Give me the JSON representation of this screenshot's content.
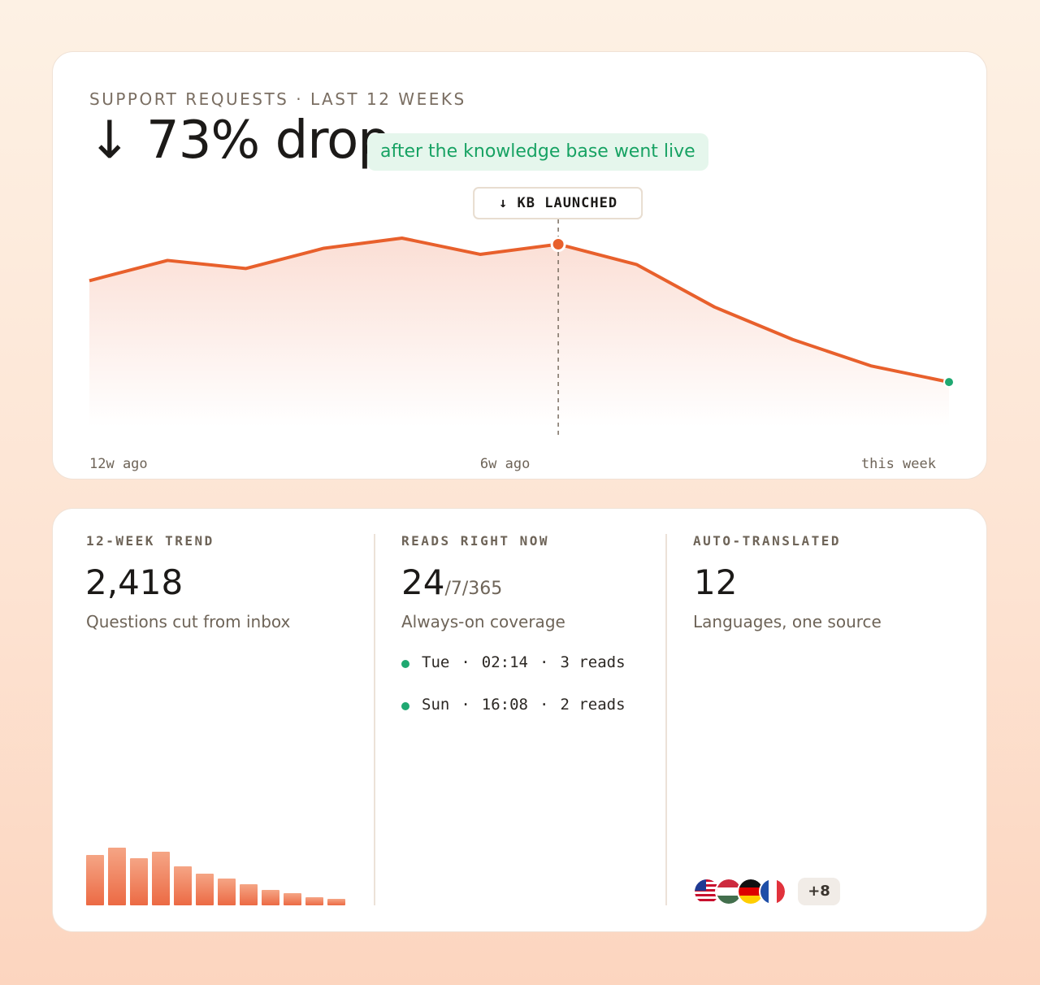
{
  "hero": {
    "eyebrow": "SUPPORT REQUESTS · LAST 12 WEEKS",
    "headline": "↓ 73% drop",
    "badge": "after the knowledge base went live"
  },
  "chart_data": [
    {
      "type": "line",
      "categories": [
        "12w ago",
        null,
        null,
        null,
        null,
        "6w ago",
        null,
        null,
        null,
        null,
        null,
        "this week"
      ],
      "values": [
        72,
        82,
        78,
        88,
        93,
        85,
        90,
        80,
        59,
        43,
        30,
        22
      ],
      "color": "#e8602c",
      "end_color": "#1fa871",
      "annotations": [
        {
          "label": "↓ KB LAUNCHED",
          "index": 6
        }
      ]
    },
    {
      "type": "bar",
      "values": [
        62,
        71,
        58,
        66,
        48,
        39,
        33,
        26,
        19,
        15,
        10,
        8
      ],
      "color": "#ee7a52"
    }
  ],
  "stats": [
    {
      "label": "12-WEEK TREND",
      "value": "2,418",
      "caption": "Questions cut from inbox"
    },
    {
      "label": "READS RIGHT NOW",
      "value": "24",
      "suffix": "/7/365",
      "caption": "Always-on coverage",
      "separator": "·",
      "reads": [
        {
          "day": "Tue",
          "time": "02:14",
          "count": "3 reads"
        },
        {
          "day": "Sun",
          "time": "16:08",
          "count": "2 reads"
        }
      ]
    },
    {
      "label": "AUTO-TRANSLATED",
      "value": "12",
      "caption": "Languages, one source",
      "more": "+8"
    }
  ]
}
